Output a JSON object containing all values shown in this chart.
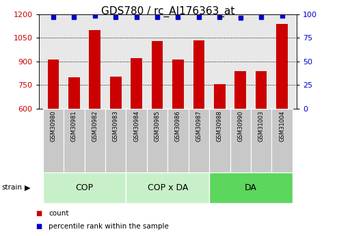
{
  "title": "GDS780 / rc_AI176363_at",
  "samples": [
    "GSM30980",
    "GSM30981",
    "GSM30982",
    "GSM30983",
    "GSM30984",
    "GSM30985",
    "GSM30986",
    "GSM30987",
    "GSM30988",
    "GSM30990",
    "GSM31003",
    "GSM31004"
  ],
  "counts": [
    910,
    800,
    1100,
    805,
    920,
    1030,
    910,
    1035,
    755,
    840,
    840,
    1140
  ],
  "percentiles": [
    97,
    97,
    98,
    97,
    97,
    97,
    97,
    97,
    97,
    96,
    97,
    98
  ],
  "group_ranges": [
    {
      "label": "COP",
      "start": 0,
      "end": 3,
      "color": "#C8F0C8"
    },
    {
      "label": "COP x DA",
      "start": 4,
      "end": 7,
      "color": "#C8F0C8"
    },
    {
      "label": "DA",
      "start": 8,
      "end": 11,
      "color": "#5CD65C"
    }
  ],
  "ylim_left": [
    600,
    1200
  ],
  "ylim_right": [
    0,
    100
  ],
  "yticks_left": [
    600,
    750,
    900,
    1050,
    1200
  ],
  "yticks_right": [
    0,
    25,
    50,
    75,
    100
  ],
  "bar_color": "#CC0000",
  "dot_color": "#0000CC",
  "bar_width": 0.55,
  "background_color": "#FFFFFF",
  "plot_bg_color": "#E8E8E8",
  "label_bg_color": "#C8C8C8",
  "title_fontsize": 11,
  "tick_fontsize": 8,
  "label_fontsize": 6,
  "group_fontsize": 9,
  "legend_items": [
    "count",
    "percentile rank within the sample"
  ],
  "legend_colors": [
    "#CC0000",
    "#0000CC"
  ]
}
